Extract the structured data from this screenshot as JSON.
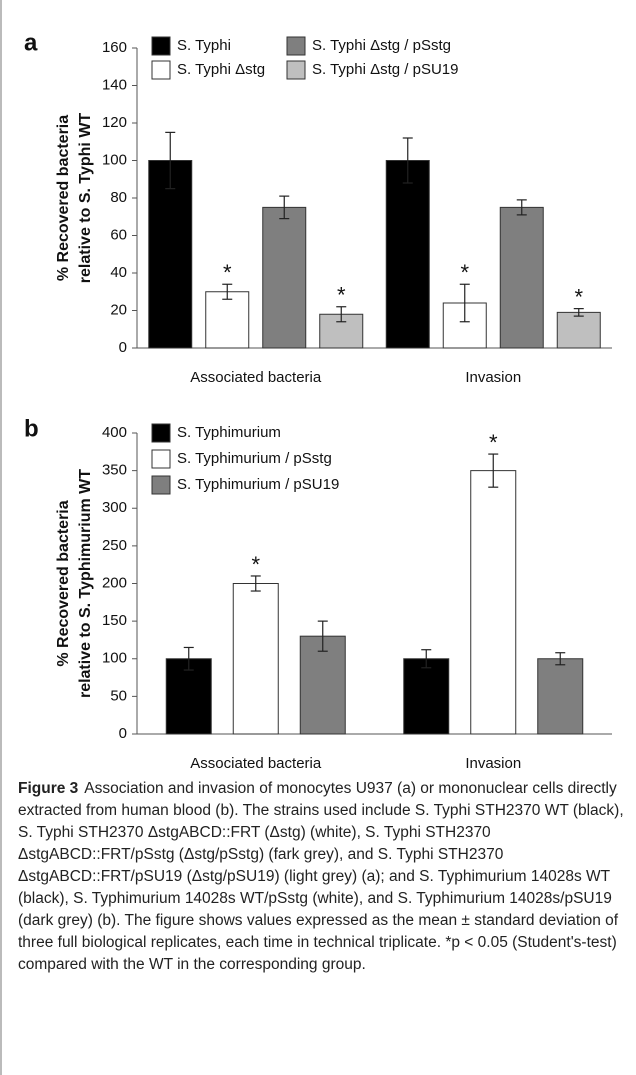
{
  "chart_data": [
    {
      "type": "bar",
      "panel": "a",
      "ylabel": [
        "% Recovered bacteria",
        "relative to S. Typhi WT"
      ],
      "categories": [
        "Associated bacteria",
        "Invasion"
      ],
      "ylim": [
        0,
        160
      ],
      "yticks": [
        0,
        20,
        40,
        60,
        80,
        100,
        120,
        140,
        160
      ],
      "series": [
        {
          "name": "S. Typhi",
          "color": "#000000",
          "values": [
            100,
            100
          ],
          "errors": [
            15,
            12
          ]
        },
        {
          "name": "S. Typhi Δstg",
          "color": "#ffffff",
          "values": [
            30,
            24
          ],
          "errors": [
            4,
            10
          ]
        },
        {
          "name": "S. Typhi Δstg / pSstg",
          "color": "#7f7f7f",
          "values": [
            75,
            75
          ],
          "errors": [
            6,
            4
          ]
        },
        {
          "name": "S. Typhi Δstg  / pSU19",
          "color": "#bfbfbf",
          "values": [
            18,
            19
          ],
          "errors": [
            4,
            2
          ]
        }
      ],
      "annotations": [
        {
          "text": "*",
          "series": 1,
          "category": 0
        },
        {
          "text": "*",
          "series": 3,
          "category": 0
        },
        {
          "text": "*",
          "series": 1,
          "category": 1
        },
        {
          "text": "*",
          "series": 3,
          "category": 1
        }
      ]
    },
    {
      "type": "bar",
      "panel": "b",
      "ylabel": [
        "% Recovered bacteria",
        "relative to S. Typhimurium WT"
      ],
      "categories": [
        "Associated bacteria",
        "Invasion"
      ],
      "ylim": [
        0,
        400
      ],
      "yticks": [
        0,
        50,
        100,
        150,
        200,
        250,
        300,
        350,
        400
      ],
      "series": [
        {
          "name": "S. Typhimurium",
          "color": "#000000",
          "values": [
            100,
            100
          ],
          "errors": [
            15,
            12
          ]
        },
        {
          "name": "S. Typhimurium / pSstg",
          "color": "#ffffff",
          "values": [
            200,
            350
          ],
          "errors": [
            10,
            22
          ]
        },
        {
          "name": "S. Typhimurium / pSU19",
          "color": "#7f7f7f",
          "values": [
            130,
            100
          ],
          "errors": [
            20,
            8
          ]
        }
      ],
      "annotations": [
        {
          "text": "*",
          "series": 1,
          "category": 0
        },
        {
          "text": "*",
          "series": 1,
          "category": 1
        }
      ]
    }
  ],
  "caption": {
    "label": "Figure 3",
    "text": "Association and invasion of monocytes U937 (a) or mononuclear cells directly extracted from human blood (b). The strains used include S. Typhi STH2370 WT (black), S. Typhi STH2370 ΔstgABCD::FRT (Δstg) (white), S. Typhi STH2370 ΔstgABCD::FRT/pSstg (Δstg/pSstg) (fark grey), and S. Typhi STH2370 ΔstgABCD::FRT/pSU19 (Δstg/pSU19) (light grey) (a); and S. Typhimurium 14028s WT (black), S. Typhimurium 14028s WT/pSstg (white), and S. Typhimurium 14028s/pSU19 (dark grey) (b). The figure shows values expressed as the mean ± standard deviation of three full biological replicates, each time in technical triplicate. *p < 0.05 (Student's-test) compared with the WT in the corresponding group."
  }
}
